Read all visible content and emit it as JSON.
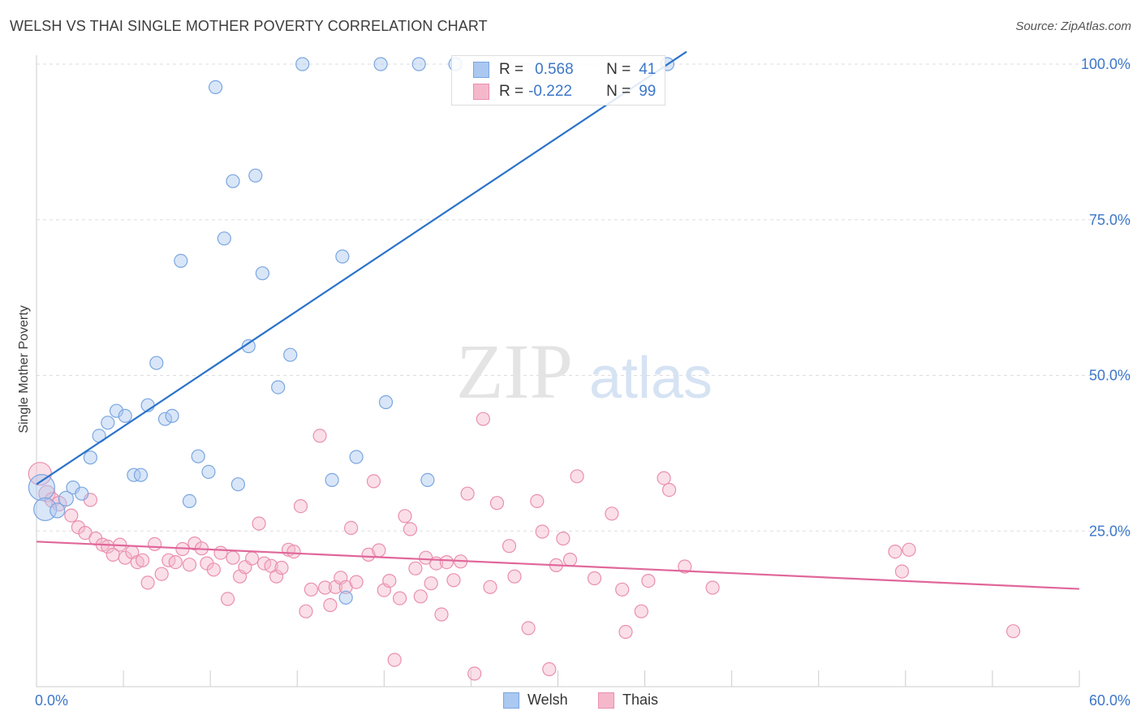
{
  "header": {
    "title": "WELSH VS THAI SINGLE MOTHER POVERTY CORRELATION CHART",
    "source": "Source: ZipAtlas.com"
  },
  "watermark": {
    "zip": "ZIP",
    "atlas": "atlas"
  },
  "stats": {
    "welsh": {
      "r_label": "R =",
      "r_value": "0.568",
      "n_label": "N =",
      "n_value": "41"
    },
    "thais": {
      "r_label": "R =",
      "r_value": "-0.222",
      "n_label": "N =",
      "n_value": "99"
    }
  },
  "legend": {
    "welsh": "Welsh",
    "thais": "Thais"
  },
  "colors": {
    "welsh_fill": "#aac8f0",
    "welsh_stroke": "#7aa6e0",
    "welsh_line": "#2a73c9",
    "thais_fill": "#f5b8cb",
    "thais_stroke": "#ea8fae",
    "thais_line": "#e0679a",
    "tick_text": "#3d77c9",
    "grid": "#dddddd"
  },
  "chart_data": {
    "type": "scatter",
    "title": "WELSH VS THAI SINGLE MOTHER POVERTY CORRELATION CHART",
    "xlabel": "",
    "ylabel": "Single Mother Poverty",
    "xlim": [
      0,
      60
    ],
    "ylim": [
      0,
      102
    ],
    "x_tick_labels": [
      {
        "value": 0,
        "label": "0.0%"
      },
      {
        "value": 60,
        "label": "60.0%"
      }
    ],
    "y_tick_labels": [
      {
        "value": 25,
        "label": "25.0%"
      },
      {
        "value": 50,
        "label": "50.0%"
      },
      {
        "value": 75,
        "label": "75.0%"
      },
      {
        "value": 100,
        "label": "100.0%"
      }
    ],
    "grid": true,
    "legend_position": "bottom-center",
    "series": [
      {
        "name": "Welsh",
        "r": 0.568,
        "n": 41,
        "trend": {
          "x0": 0,
          "y0": 32.5,
          "x1": 37.4,
          "y1": 102
        },
        "points": [
          [
            0.3,
            32.0,
            16
          ],
          [
            0.5,
            28.5,
            14
          ],
          [
            1.2,
            28.3,
            9
          ],
          [
            1.7,
            30.2,
            9
          ],
          [
            2.1,
            32.0,
            8
          ],
          [
            2.6,
            31.0,
            8
          ],
          [
            3.1,
            36.8,
            8
          ],
          [
            3.6,
            40.3,
            8
          ],
          [
            4.1,
            42.4,
            8
          ],
          [
            4.6,
            44.3,
            8
          ],
          [
            5.1,
            43.5,
            8
          ],
          [
            5.6,
            34.0,
            8
          ],
          [
            6.0,
            34.0,
            8
          ],
          [
            6.4,
            45.2,
            8
          ],
          [
            6.9,
            52.0,
            8
          ],
          [
            7.4,
            43.0,
            8
          ],
          [
            7.8,
            43.5,
            8
          ],
          [
            8.3,
            68.4,
            8
          ],
          [
            8.8,
            29.8,
            8
          ],
          [
            9.3,
            37.0,
            8
          ],
          [
            9.9,
            34.5,
            8
          ],
          [
            10.3,
            96.3,
            8
          ],
          [
            10.8,
            72.0,
            8
          ],
          [
            11.3,
            81.2,
            8
          ],
          [
            11.6,
            32.5,
            8
          ],
          [
            12.2,
            54.7,
            8
          ],
          [
            12.6,
            82.1,
            8
          ],
          [
            13.0,
            66.4,
            8
          ],
          [
            13.9,
            48.1,
            8
          ],
          [
            14.6,
            53.3,
            8
          ],
          [
            15.3,
            100.0,
            8
          ],
          [
            17.0,
            33.2,
            8
          ],
          [
            17.6,
            69.1,
            8
          ],
          [
            17.8,
            14.3,
            8
          ],
          [
            18.4,
            36.9,
            8
          ],
          [
            19.8,
            100.0,
            8
          ],
          [
            20.1,
            45.7,
            8
          ],
          [
            22.0,
            100.0,
            8
          ],
          [
            22.5,
            33.2,
            8
          ],
          [
            24.1,
            100.0,
            8
          ],
          [
            36.3,
            100.0,
            8
          ]
        ]
      },
      {
        "name": "Thais",
        "r": -0.222,
        "n": 99,
        "trend": {
          "x0": 0,
          "y0": 23.3,
          "x1": 60,
          "y1": 15.7
        },
        "points": [
          [
            0.2,
            34.2,
            14
          ],
          [
            0.6,
            31.0,
            10
          ],
          [
            0.9,
            30.0,
            9
          ],
          [
            1.3,
            29.4,
            9
          ],
          [
            2.0,
            27.5,
            8
          ],
          [
            2.4,
            25.6,
            8
          ],
          [
            2.8,
            24.7,
            8
          ],
          [
            3.1,
            30.0,
            8
          ],
          [
            3.4,
            23.8,
            8
          ],
          [
            3.8,
            22.8,
            8
          ],
          [
            4.1,
            22.5,
            8
          ],
          [
            4.4,
            21.2,
            8
          ],
          [
            4.8,
            22.8,
            8
          ],
          [
            5.1,
            20.7,
            8
          ],
          [
            5.5,
            21.6,
            8
          ],
          [
            5.8,
            20.0,
            8
          ],
          [
            6.1,
            20.3,
            8
          ],
          [
            6.4,
            16.7,
            8
          ],
          [
            6.8,
            22.9,
            8
          ],
          [
            7.2,
            18.1,
            8
          ],
          [
            7.6,
            20.3,
            8
          ],
          [
            8.0,
            20.0,
            8
          ],
          [
            8.4,
            22.1,
            8
          ],
          [
            8.8,
            19.6,
            8
          ],
          [
            9.1,
            23.0,
            8
          ],
          [
            9.5,
            22.2,
            8
          ],
          [
            9.8,
            19.8,
            8
          ],
          [
            10.2,
            18.8,
            8
          ],
          [
            10.6,
            21.5,
            8
          ],
          [
            11.0,
            14.1,
            8
          ],
          [
            11.3,
            20.7,
            8
          ],
          [
            11.7,
            17.7,
            8
          ],
          [
            12.0,
            19.2,
            8
          ],
          [
            12.4,
            20.6,
            8
          ],
          [
            12.8,
            26.2,
            8
          ],
          [
            13.1,
            19.8,
            8
          ],
          [
            13.5,
            19.4,
            8
          ],
          [
            13.8,
            17.7,
            8
          ],
          [
            14.1,
            19.1,
            8
          ],
          [
            14.5,
            22.0,
            8
          ],
          [
            14.8,
            21.7,
            8
          ],
          [
            15.2,
            29.0,
            8
          ],
          [
            15.5,
            12.1,
            8
          ],
          [
            15.8,
            15.6,
            8
          ],
          [
            16.3,
            40.3,
            8
          ],
          [
            16.6,
            15.9,
            8
          ],
          [
            16.9,
            13.1,
            8
          ],
          [
            17.2,
            16.0,
            8
          ],
          [
            17.5,
            17.5,
            8
          ],
          [
            17.8,
            16.0,
            8
          ],
          [
            18.1,
            25.5,
            8
          ],
          [
            18.4,
            16.8,
            8
          ],
          [
            19.1,
            21.2,
            8
          ],
          [
            19.4,
            33.0,
            8
          ],
          [
            19.7,
            21.9,
            8
          ],
          [
            20.0,
            15.5,
            8
          ],
          [
            20.3,
            17.0,
            8
          ],
          [
            20.6,
            4.3,
            8
          ],
          [
            20.9,
            14.2,
            8
          ],
          [
            21.2,
            27.4,
            8
          ],
          [
            21.5,
            25.3,
            8
          ],
          [
            21.8,
            19.0,
            8
          ],
          [
            22.1,
            14.5,
            8
          ],
          [
            22.4,
            20.7,
            8
          ],
          [
            22.7,
            16.6,
            8
          ],
          [
            23.0,
            19.8,
            8
          ],
          [
            23.3,
            11.6,
            8
          ],
          [
            23.6,
            20.0,
            8
          ],
          [
            24.0,
            17.1,
            8
          ],
          [
            24.4,
            20.1,
            8
          ],
          [
            24.8,
            31.0,
            8
          ],
          [
            25.2,
            2.1,
            8
          ],
          [
            25.7,
            43.0,
            8
          ],
          [
            26.1,
            16.0,
            8
          ],
          [
            26.5,
            29.5,
            8
          ],
          [
            27.2,
            22.6,
            8
          ],
          [
            27.5,
            17.7,
            8
          ],
          [
            28.3,
            9.4,
            8
          ],
          [
            28.8,
            29.8,
            8
          ],
          [
            29.1,
            24.9,
            8
          ],
          [
            29.5,
            2.8,
            8
          ],
          [
            29.9,
            19.5,
            8
          ],
          [
            30.3,
            23.8,
            8
          ],
          [
            30.7,
            20.4,
            8
          ],
          [
            31.1,
            33.8,
            8
          ],
          [
            32.1,
            17.4,
            8
          ],
          [
            33.1,
            27.8,
            8
          ],
          [
            33.7,
            15.6,
            8
          ],
          [
            33.9,
            8.8,
            8
          ],
          [
            34.8,
            12.1,
            8
          ],
          [
            35.2,
            17.0,
            8
          ],
          [
            36.1,
            33.5,
            8
          ],
          [
            36.4,
            31.6,
            8
          ],
          [
            37.3,
            19.3,
            8
          ],
          [
            38.9,
            15.9,
            8
          ],
          [
            49.4,
            21.7,
            8
          ],
          [
            49.8,
            18.5,
            8
          ],
          [
            50.2,
            22.0,
            8
          ],
          [
            56.2,
            8.9,
            8
          ]
        ]
      }
    ]
  }
}
